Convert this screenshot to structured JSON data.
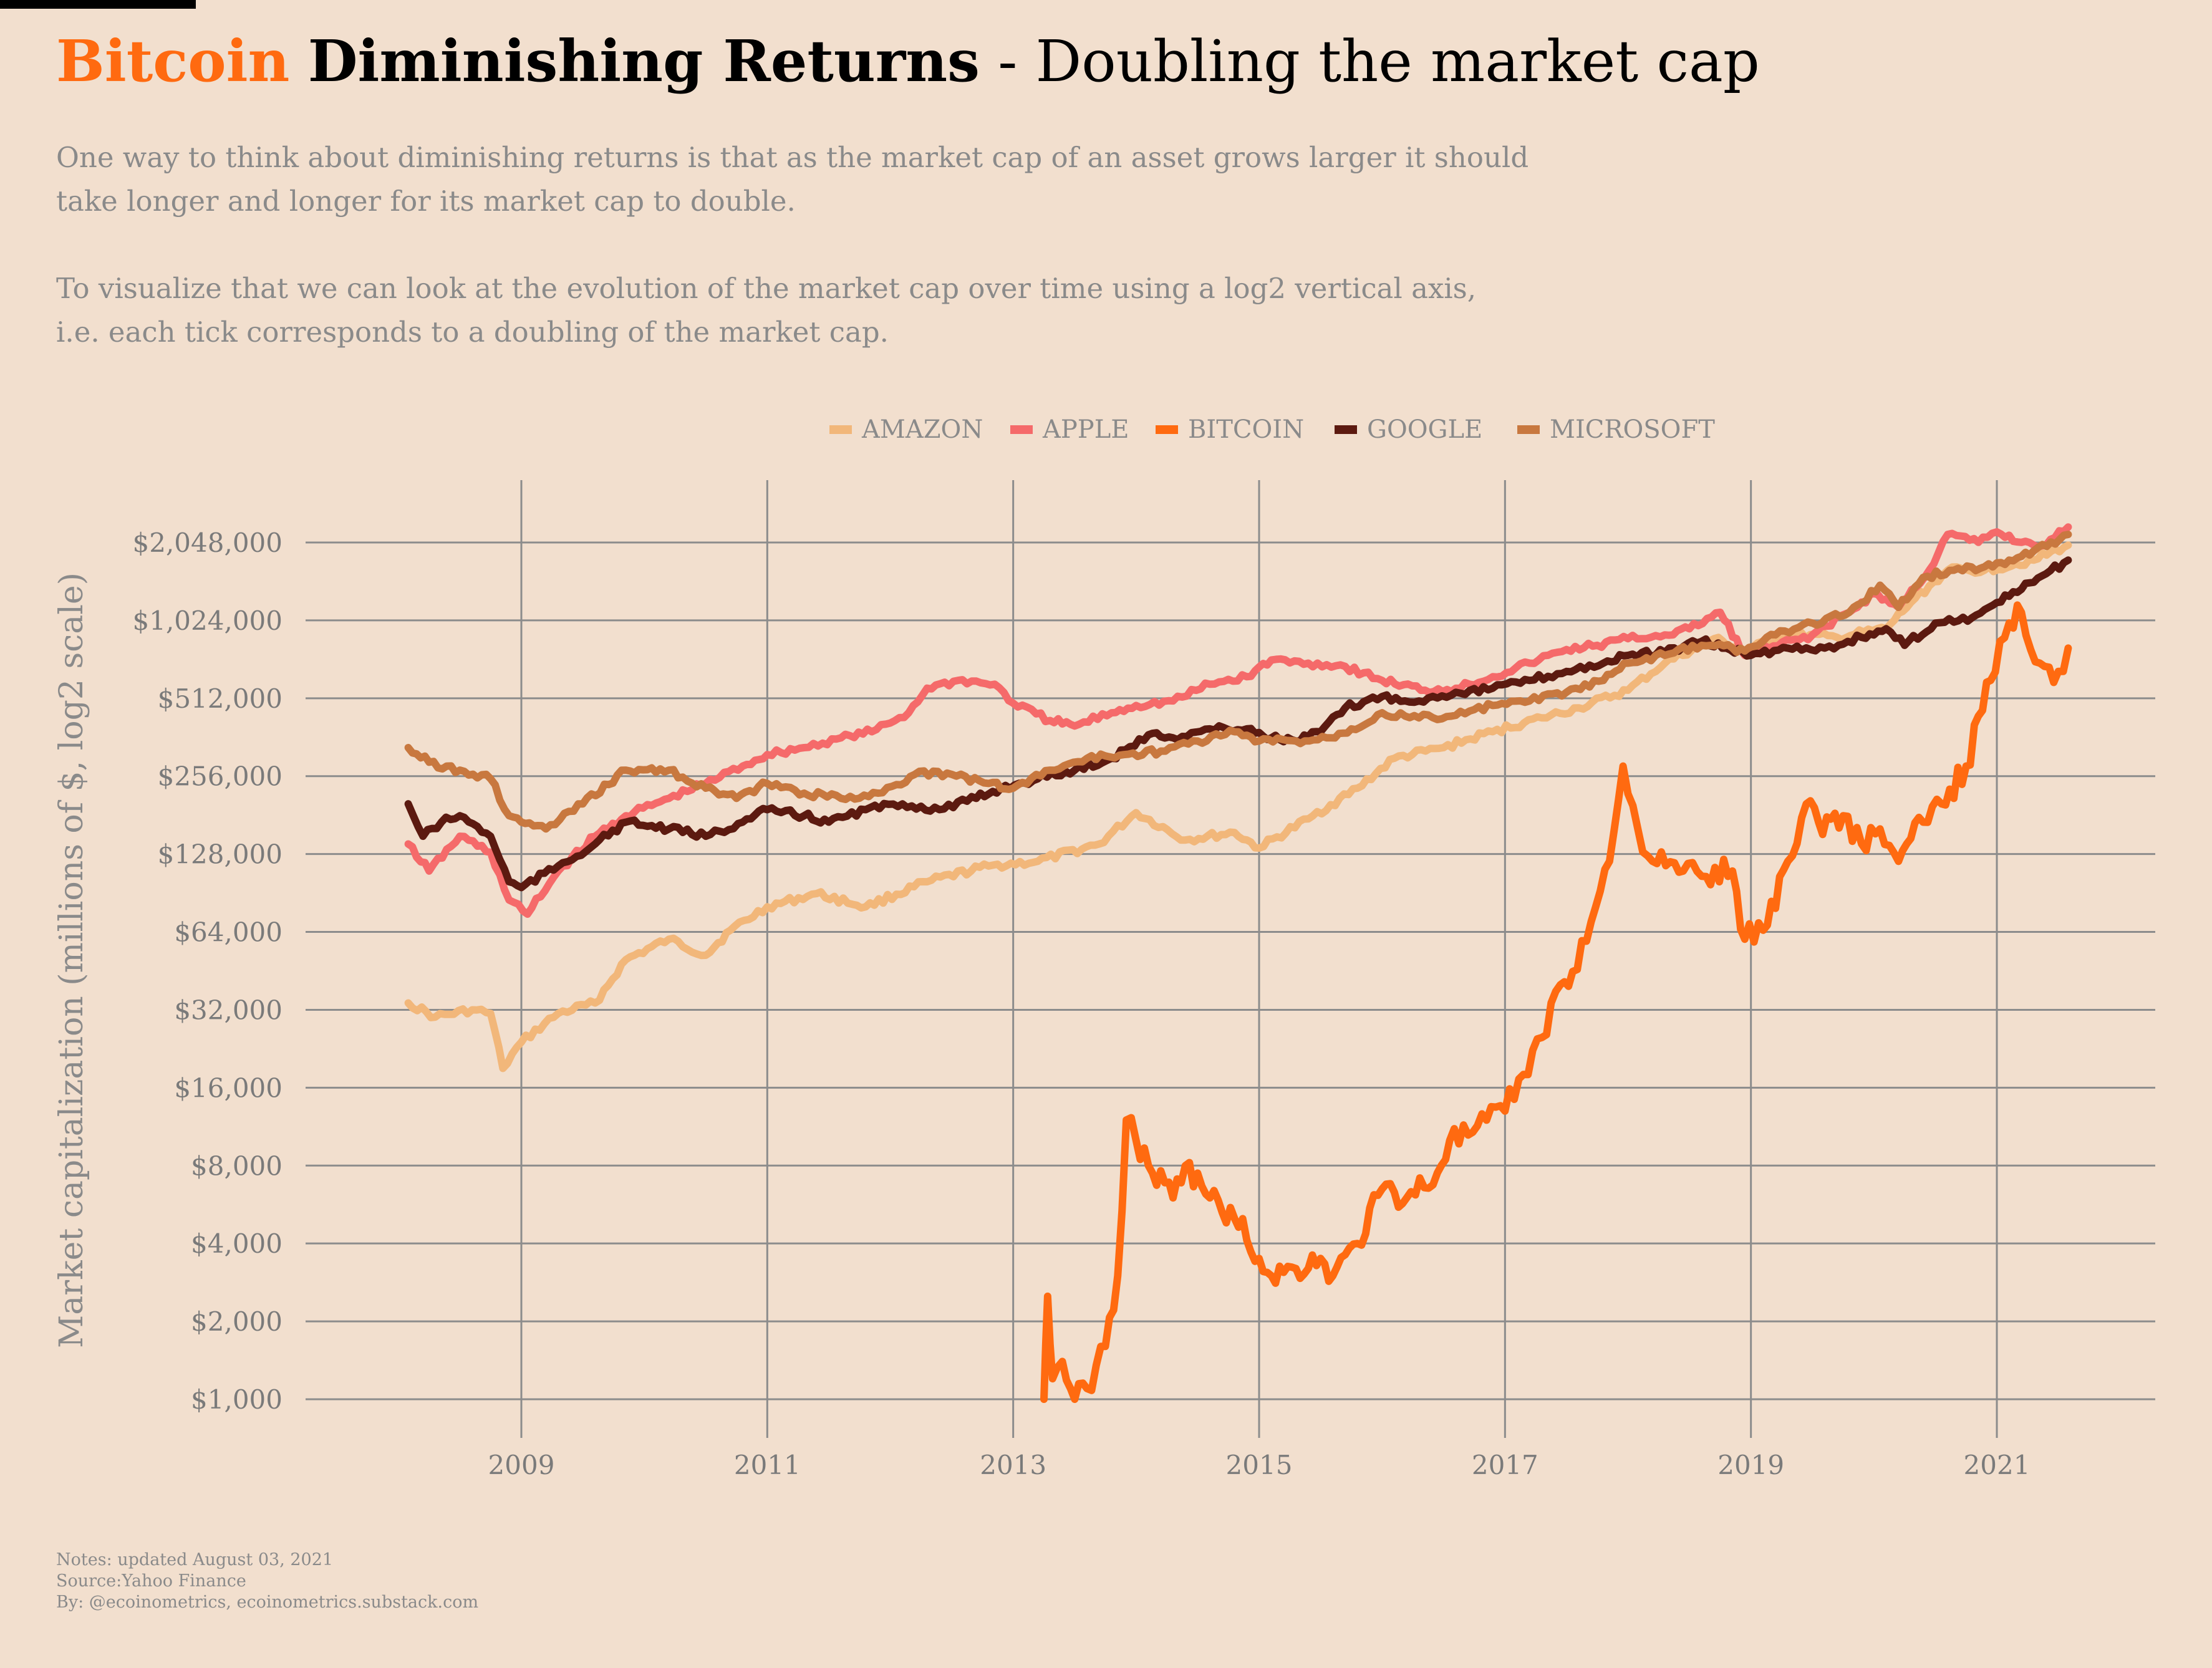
{
  "title": {
    "part1": "Bitcoin",
    "part2": "Diminishing Returns",
    "part3": "- Doubling the market cap"
  },
  "subtitle": {
    "line1": "One way to think about diminishing returns is that as the market cap of an asset grows larger it should",
    "line2": "take longer and longer for its market cap to double.",
    "line3": "To visualize that we can look at the evolution of the market cap over time using a log2 vertical axis,",
    "line4": "i.e. each tick corresponds to a doubling of the market cap."
  },
  "footnotes": {
    "notes": "Notes: updated August 03, 2021",
    "source": "Source:Yahoo Finance",
    "by": "By: @ecoinometrics, ecoinometrics.substack.com"
  },
  "chart_data": {
    "type": "line",
    "title": "Bitcoin Diminishing Returns - Doubling the market cap",
    "xlabel": "",
    "ylabel": "Market capitalization (millions of $, log2 scale)",
    "y_scale": "log2",
    "xlim": [
      2007.0,
      2021.8
    ],
    "ylim": [
      1000,
      2700000
    ],
    "x_ticks": [
      2009,
      2011,
      2013,
      2015,
      2017,
      2019,
      2021
    ],
    "x_tick_labels": [
      "2009",
      "2011",
      "2013",
      "2015",
      "2017",
      "2019",
      "2021"
    ],
    "y_ticks": [
      1000,
      2000,
      4000,
      8000,
      16000,
      32000,
      64000,
      128000,
      256000,
      512000,
      1024000,
      2048000
    ],
    "y_tick_labels": [
      "$1,000",
      "$2,000",
      "$4,000",
      "$8,000",
      "$16,000",
      "$32,000",
      "$64,000",
      "$128,000",
      "$256,000",
      "$512,000",
      "$1,024,000",
      "$2,048,000"
    ],
    "grid": true,
    "legend_position": "top",
    "series": [
      {
        "name": "AMAZON",
        "color": "#f2b77a",
        "x": [
          2008.08,
          2008.3,
          2008.6,
          2008.75,
          2008.85,
          2009.0,
          2009.3,
          2009.6,
          2009.85,
          2010.2,
          2010.5,
          2010.7,
          2011.0,
          2011.4,
          2011.8,
          2012.3,
          2012.8,
          2013.2,
          2013.7,
          2014.0,
          2014.4,
          2014.8,
          2015.0,
          2015.4,
          2015.8,
          2016.1,
          2016.5,
          2016.9,
          2017.3,
          2017.6,
          2018.0,
          2018.3,
          2018.7,
          2018.95,
          2019.3,
          2019.7,
          2020.1,
          2020.3,
          2020.6,
          2020.9,
          2021.3,
          2021.58
        ],
        "y": [
          34000,
          30000,
          32000,
          31000,
          19000,
          24000,
          31000,
          34000,
          50000,
          60000,
          52000,
          65000,
          80000,
          90000,
          80000,
          100000,
          115000,
          120000,
          140000,
          185000,
          145000,
          155000,
          135000,
          175000,
          230000,
          300000,
          330000,
          380000,
          430000,
          470000,
          550000,
          700000,
          870000,
          780000,
          900000,
          880000,
          950000,
          1200000,
          1600000,
          1600000,
          1750000,
          2000000
        ]
      },
      {
        "name": "APPLE",
        "color": "#f56a6a",
        "x": [
          2008.08,
          2008.25,
          2008.5,
          2008.75,
          2008.9,
          2009.05,
          2009.3,
          2009.6,
          2009.85,
          2010.2,
          2010.5,
          2010.8,
          2011.0,
          2011.3,
          2011.6,
          2011.85,
          2012.15,
          2012.3,
          2012.55,
          2012.85,
          2013.0,
          2013.3,
          2013.5,
          2013.8,
          2014.0,
          2014.3,
          2014.6,
          2014.9,
          2015.1,
          2015.4,
          2015.7,
          2016.0,
          2016.35,
          2016.6,
          2016.9,
          2017.2,
          2017.5,
          2017.75,
          2018.0,
          2018.3,
          2018.5,
          2018.75,
          2018.95,
          2019.15,
          2019.5,
          2019.8,
          2020.0,
          2020.2,
          2020.45,
          2020.6,
          2020.85,
          2021.0,
          2021.2,
          2021.4,
          2021.58
        ],
        "y": [
          140000,
          110000,
          150000,
          130000,
          85000,
          75000,
          110000,
          150000,
          180000,
          210000,
          240000,
          280000,
          310000,
          330000,
          360000,
          380000,
          450000,
          560000,
          600000,
          580000,
          490000,
          420000,
          400000,
          450000,
          480000,
          500000,
          580000,
          620000,
          720000,
          700000,
          680000,
          600000,
          550000,
          560000,
          620000,
          700000,
          790000,
          820000,
          870000,
          900000,
          950000,
          1100000,
          750000,
          800000,
          900000,
          1100000,
          1300000,
          1150000,
          1600000,
          2200000,
          2050000,
          2250000,
          2050000,
          2000000,
          2350000
        ]
      },
      {
        "name": "BITCOIN",
        "color": "#ff6a10",
        "x": [
          2013.25,
          2013.28,
          2013.32,
          2013.4,
          2013.5,
          2013.6,
          2013.75,
          2013.85,
          2013.92,
          2014.0,
          2014.1,
          2014.3,
          2014.4,
          2014.6,
          2014.8,
          2015.0,
          2015.1,
          2015.3,
          2015.5,
          2015.6,
          2015.8,
          2016.0,
          2016.2,
          2016.45,
          2016.55,
          2016.7,
          2017.0,
          2017.15,
          2017.3,
          2017.45,
          2017.55,
          2017.7,
          2017.85,
          2017.96,
          2018.08,
          2018.2,
          2018.45,
          2018.6,
          2018.85,
          2018.95,
          2019.1,
          2019.3,
          2019.45,
          2019.55,
          2019.75,
          2019.9,
          2020.05,
          2020.2,
          2020.4,
          2020.55,
          2020.75,
          2020.95,
          2021.1,
          2021.2,
          2021.35,
          2021.5,
          2021.58
        ],
        "y": [
          1000,
          2500,
          1200,
          1400,
          1000,
          1100,
          1600,
          3000,
          12000,
          10000,
          8000,
          6000,
          8000,
          6000,
          5000,
          3500,
          3000,
          3200,
          3500,
          3000,
          4000,
          6500,
          6000,
          7500,
          10000,
          10500,
          13000,
          18000,
          25000,
          40000,
          45000,
          70000,
          120000,
          280000,
          160000,
          120000,
          110000,
          105000,
          110000,
          60000,
          65000,
          120000,
          200000,
          170000,
          180000,
          140000,
          160000,
          120000,
          170000,
          200000,
          280000,
          600000,
          1000000,
          1100000,
          700000,
          650000,
          800000
        ]
      },
      {
        "name": "GOOGLE",
        "color": "#5c1a10",
        "x": [
          2008.08,
          2008.2,
          2008.35,
          2008.5,
          2008.75,
          2008.9,
          2009.0,
          2009.3,
          2009.6,
          2009.85,
          2010.2,
          2010.5,
          2010.8,
          2011.0,
          2011.3,
          2011.5,
          2011.8,
          2012.1,
          2012.4,
          2012.7,
          2012.9,
          2013.2,
          2013.5,
          2013.8,
          2014.1,
          2014.3,
          2014.6,
          2014.9,
          2015.1,
          2015.3,
          2015.5,
          2015.7,
          2016.0,
          2016.3,
          2016.6,
          2016.9,
          2017.2,
          2017.5,
          2017.8,
          2018.0,
          2018.3,
          2018.6,
          2018.8,
          2019.0,
          2019.3,
          2019.6,
          2019.9,
          2020.1,
          2020.25,
          2020.5,
          2020.8,
          2021.0,
          2021.2,
          2021.4,
          2021.58
        ],
        "y": [
          200000,
          150000,
          170000,
          180000,
          150000,
          100000,
          95000,
          115000,
          140000,
          170000,
          160000,
          150000,
          170000,
          190000,
          180000,
          170000,
          190000,
          200000,
          190000,
          210000,
          230000,
          250000,
          270000,
          300000,
          370000,
          360000,
          390000,
          390000,
          360000,
          350000,
          380000,
          470000,
          520000,
          500000,
          540000,
          560000,
          600000,
          650000,
          700000,
          750000,
          770000,
          850000,
          800000,
          750000,
          800000,
          800000,
          880000,
          950000,
          820000,
          1000000,
          1050000,
          1200000,
          1350000,
          1550000,
          1750000
        ]
      },
      {
        "name": "MICROSOFT",
        "color": "#c8783f",
        "x": [
          2008.08,
          2008.25,
          2008.5,
          2008.75,
          2008.9,
          2009.0,
          2009.2,
          2009.5,
          2009.85,
          2010.2,
          2010.5,
          2010.75,
          2011.0,
          2011.3,
          2011.6,
          2011.9,
          2012.2,
          2012.5,
          2012.8,
          2013.0,
          2013.3,
          2013.6,
          2013.9,
          2014.2,
          2014.5,
          2014.8,
          2015.0,
          2015.3,
          2015.55,
          2015.75,
          2016.0,
          2016.3,
          2016.6,
          2016.9,
          2017.2,
          2017.5,
          2017.8,
          2018.0,
          2018.3,
          2018.6,
          2018.85,
          2018.95,
          2019.2,
          2019.5,
          2019.8,
          2020.05,
          2020.2,
          2020.4,
          2020.65,
          2020.9,
          2021.1,
          2021.3,
          2021.58
        ],
        "y": [
          330000,
          290000,
          270000,
          250000,
          180000,
          170000,
          160000,
          200000,
          270000,
          270000,
          230000,
          210000,
          240000,
          220000,
          210000,
          220000,
          260000,
          260000,
          240000,
          230000,
          270000,
          300000,
          310000,
          320000,
          350000,
          380000,
          350000,
          350000,
          360000,
          390000,
          450000,
          430000,
          440000,
          480000,
          500000,
          540000,
          600000,
          700000,
          750000,
          820000,
          800000,
          780000,
          900000,
          1000000,
          1100000,
          1400000,
          1150000,
          1500000,
          1600000,
          1650000,
          1750000,
          1900000,
          2200000
        ]
      }
    ]
  }
}
